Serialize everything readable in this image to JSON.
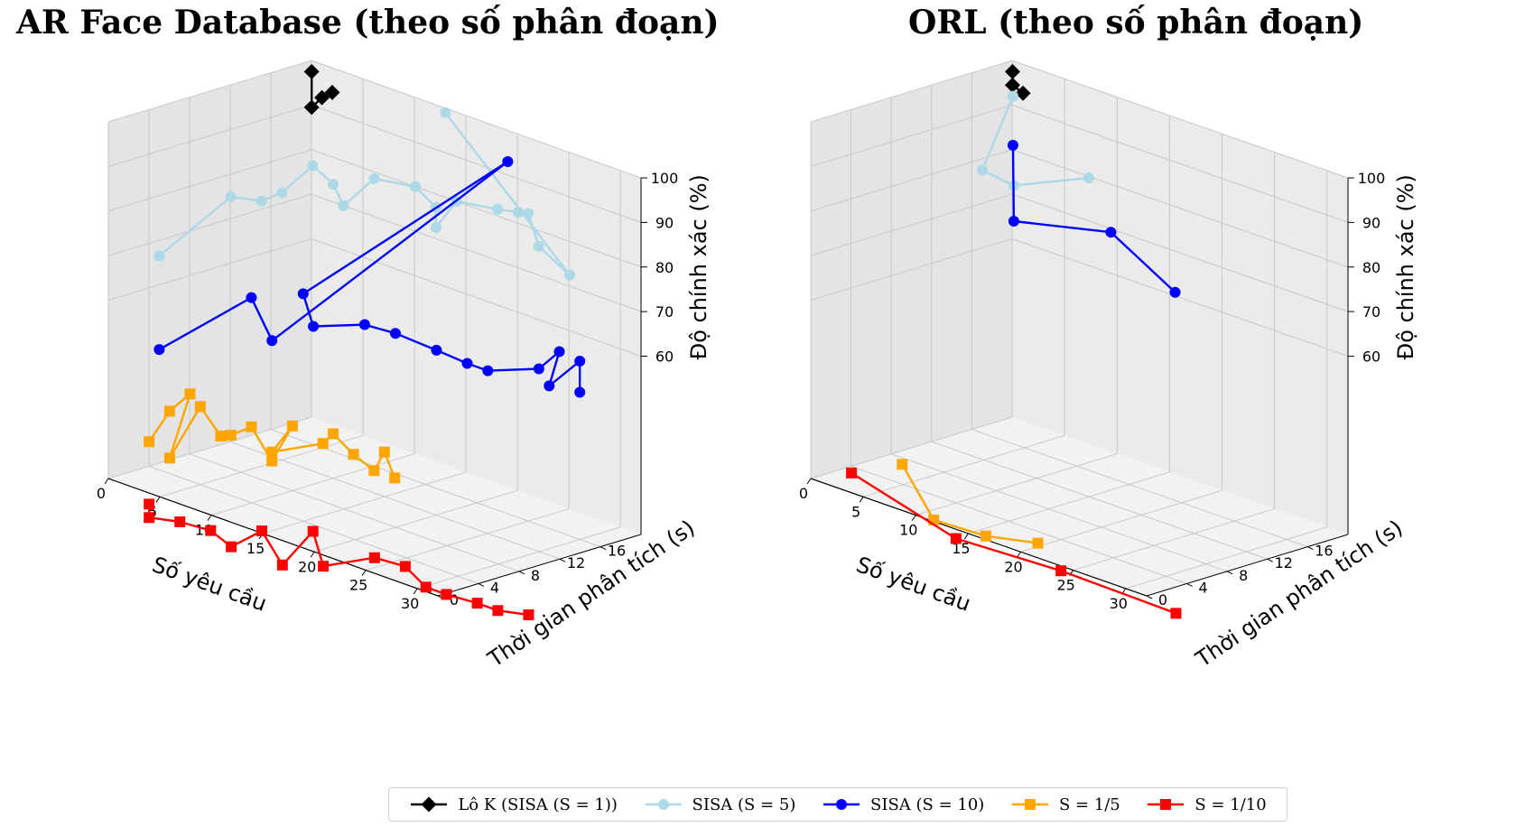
{
  "chart_data": [
    {
      "type": "line3d",
      "title": "AR Face Database (theo số phân đoạn)",
      "xlabel": "Số yêu cầu",
      "ylabel": "Thời gian phân tích (s)",
      "zlabel": "Độ chính xác (%)",
      "xlim": [
        0,
        32
      ],
      "ylim": [
        0,
        20
      ],
      "zlim": [
        20,
        100
      ],
      "xticks": [
        "0",
        "5",
        "10",
        "15",
        "20",
        "25",
        "30"
      ],
      "yticks": [
        "0",
        "4",
        "8",
        "12",
        "16"
      ],
      "zticks": [
        "60",
        "70",
        "80",
        "90",
        "100"
      ],
      "grid": true,
      "series": [
        {
          "name": "Lô K (SISA (S = 1))",
          "color": "#000000",
          "marker": "D",
          "points": [
            [
              1,
              19,
              99
            ],
            [
              1,
              19,
              91
            ],
            [
              2,
              19,
              94
            ],
            [
              3,
              19,
              96
            ]
          ]
        },
        {
          "name": "SISA (S = 5)",
          "color": "#add8e6",
          "marker": "o",
          "points": [
            [
              1,
              4,
              68
            ],
            [
              4,
              8,
              81
            ],
            [
              6,
              9,
              81
            ],
            [
              7,
              10,
              83
            ],
            [
              9,
              11,
              90
            ],
            [
              10,
              12,
              86
            ],
            [
              11,
              12,
              82
            ],
            [
              13,
              13,
              89
            ],
            [
              16,
              14,
              89
            ],
            [
              18,
              14,
              86
            ],
            [
              19,
              13,
              83
            ],
            [
              20,
              14,
              89
            ],
            [
              23,
              15,
              89
            ],
            [
              25,
              15,
              90
            ],
            [
              25,
              16,
              89
            ],
            [
              27,
              15,
              84
            ],
            [
              30,
              15,
              80
            ],
            [
              13,
              20,
              99
            ]
          ]
        },
        {
          "name": "SISA (S = 10)",
          "color": "#0000ff",
          "marker": "o",
          "points": [
            [
              1,
              4,
              47
            ],
            [
              6,
              8,
              60
            ],
            [
              8,
              8,
              52
            ],
            [
              23,
              16,
              99
            ],
            [
              13,
              6,
              68
            ],
            [
              13,
              7,
              60
            ],
            [
              17,
              8,
              63
            ],
            [
              19,
              9,
              62
            ],
            [
              22,
              10,
              60
            ],
            [
              24,
              11,
              58
            ],
            [
              26,
              11,
              58
            ],
            [
              28,
              14,
              58
            ],
            [
              29,
              15,
              62
            ],
            [
              29,
              14,
              55
            ],
            [
              30,
              16,
              60
            ],
            [
              30,
              16,
              53
            ]
          ]
        },
        {
          "name": "S = 1/5",
          "color": "#ffa500",
          "marker": "s",
          "points": [
            [
              1,
              3,
              27
            ],
            [
              2,
              4,
              34
            ],
            [
              3,
              5,
              38
            ],
            [
              3,
              3,
              25
            ],
            [
              4,
              5,
              36
            ],
            [
              4,
              7,
              28
            ],
            [
              5,
              7,
              29
            ],
            [
              6,
              8,
              31
            ],
            [
              8,
              8,
              25
            ],
            [
              9,
              9,
              33
            ],
            [
              8,
              8,
              27
            ],
            [
              9,
              12,
              27
            ],
            [
              10,
              12,
              30
            ],
            [
              10,
              14,
              24
            ],
            [
              12,
              14,
              22
            ],
            [
              13,
              14,
              27
            ],
            [
              14,
              14,
              22
            ]
          ]
        },
        {
          "name": "S = 1/10",
          "color": "#ff0000",
          "marker": "s",
          "points": [
            [
              1,
              3,
              13
            ],
            [
              1,
              3,
              10
            ],
            [
              3,
              4,
              10
            ],
            [
              5,
              5,
              9
            ],
            [
              7,
              5,
              7
            ],
            [
              8,
              7,
              10
            ],
            [
              10,
              7,
              4
            ],
            [
              11,
              9,
              11
            ],
            [
              12,
              9,
              4
            ],
            [
              15,
              11,
              7
            ],
            [
              17,
              12,
              6
            ],
            [
              19,
              12,
              3
            ],
            [
              21,
              12,
              3
            ],
            [
              23,
              13,
              2
            ],
            [
              25,
              13,
              2
            ],
            [
              27,
              14,
              2
            ]
          ]
        }
      ]
    },
    {
      "type": "line3d",
      "title": "ORL (theo số phân đoạn)",
      "xlabel": "Số yêu cầu",
      "ylabel": "Thời gian phân tích (s)",
      "zlabel": "Độ chính xác (%)",
      "xlim": [
        0,
        32
      ],
      "ylim": [
        0,
        20
      ],
      "zlim": [
        20,
        100
      ],
      "xticks": [
        "0",
        "5",
        "10",
        "15",
        "20",
        "25",
        "30"
      ],
      "yticks": [
        "0",
        "4",
        "8",
        "12",
        "16"
      ],
      "zticks": [
        "60",
        "70",
        "80",
        "90",
        "100"
      ],
      "grid": true,
      "series": [
        {
          "name": "Lô K (SISA (S = 1))",
          "color": "#000000",
          "marker": "D",
          "points": [
            [
              1,
              19,
              99
            ],
            [
              1,
              19,
              96
            ],
            [
              2,
              19,
              95
            ]
          ]
        },
        {
          "name": "SISA (S = 5)",
          "color": "#add8e6",
          "marker": "o",
          "points": [
            [
              2,
              18,
              95
            ],
            [
              1,
              16,
              79
            ],
            [
              4,
              16,
              78
            ],
            [
              14,
              13,
              90
            ]
          ]
        },
        {
          "name": "SISA (S = 10)",
          "color": "#0000ff",
          "marker": "o",
          "points": [
            [
              2,
              18,
              84
            ],
            [
              4,
              16,
              70
            ],
            [
              19,
              10,
              84
            ],
            [
              28,
              7,
              80
            ]
          ]
        },
        {
          "name": "S = 1/5",
          "color": "#ffa500",
          "marker": "s",
          "points": [
            [
              2,
              7,
              20
            ],
            [
              5,
              7,
              10
            ],
            [
              9,
              8,
              9
            ],
            [
              13,
              9,
              10
            ]
          ]
        },
        {
          "name": "S = 1/10",
          "color": "#ff0000",
          "marker": "s",
          "points": [
            [
              1,
              3,
              20
            ],
            [
              10,
              4,
              12
            ],
            [
              20,
              4,
              13
            ],
            [
              30,
              5,
              11
            ]
          ]
        }
      ]
    }
  ],
  "legend": [
    {
      "label": "Lô K (SISA (S = 1))",
      "color": "#000000",
      "marker": "D"
    },
    {
      "label": "SISA (S = 5)",
      "color": "#add8e6",
      "marker": "o"
    },
    {
      "label": "SISA (S = 10)",
      "color": "#0000ff",
      "marker": "o"
    },
    {
      "label": "S = 1/5",
      "color": "#ffa500",
      "marker": "s"
    },
    {
      "label": "S = 1/10",
      "color": "#ff0000",
      "marker": "s"
    }
  ]
}
